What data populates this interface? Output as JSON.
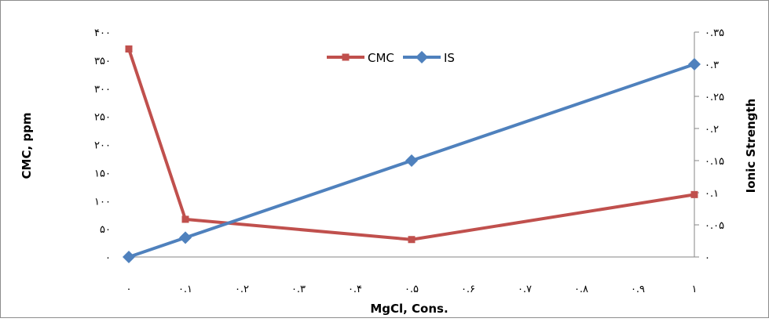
{
  "chart_data": {
    "type": "line",
    "x": [
      0,
      0.1,
      0.5,
      1
    ],
    "xlabel": "MgCl, Cons.",
    "ylabel": "CMC, ppm",
    "y2label": "Ionic Strength",
    "xlim": [
      0,
      1
    ],
    "ylim": [
      0,
      400
    ],
    "y2lim": [
      0,
      0.35
    ],
    "xticks": [
      "٠",
      "٠.١",
      "٠.٢",
      "٠.٣",
      "٠.۴",
      "٠.۵",
      "٠.۶",
      "٠.٧",
      "٠.٨",
      "٠.٩",
      "١"
    ],
    "yticks": [
      "٠",
      "۵٠",
      "١٠٠",
      "١۵٠",
      "٢٠٠",
      "٢۵٠",
      "٣٠٠",
      "٣۵٠",
      "۴٠٠"
    ],
    "y2ticks": [
      "٠",
      "٠.٠۵",
      "٠.١",
      "٠.١۵",
      "٠.٢",
      "٠.٢۵",
      "٠.٣",
      "٠.٣۵"
    ],
    "grid": false,
    "legend": "top-center",
    "series": [
      {
        "name": "CMC",
        "axis": "left",
        "color": "#c0504d",
        "marker": "square",
        "values": [
          370,
          67,
          31,
          111
        ]
      },
      {
        "name": "IS",
        "axis": "right",
        "color": "#4f81bd",
        "marker": "diamond",
        "values": [
          0,
          0.03,
          0.15,
          0.3
        ]
      }
    ]
  }
}
